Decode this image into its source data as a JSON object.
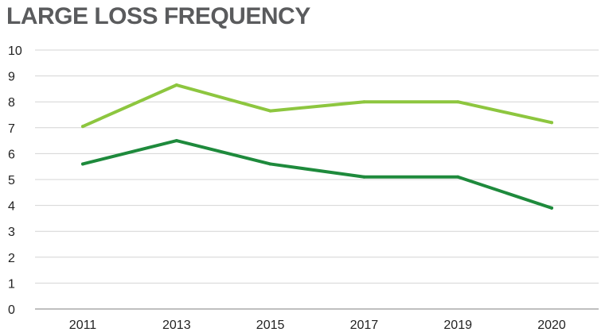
{
  "chart_data": {
    "type": "line",
    "title": "LARGE LOSS FREQUENCY",
    "xlabel": "",
    "ylabel": "",
    "categories": [
      "2011",
      "2013",
      "2015",
      "2017",
      "2019",
      "2020"
    ],
    "ylim": [
      0,
      10
    ],
    "yticks": [
      0,
      1,
      2,
      3,
      4,
      5,
      6,
      7,
      8,
      9,
      10
    ],
    "grid": true,
    "legend": "none",
    "series": [
      {
        "name": "Light green series",
        "color": "#8dc63f",
        "values": [
          7.05,
          8.65,
          7.65,
          8.0,
          8.0,
          7.2
        ]
      },
      {
        "name": "Dark green series",
        "color": "#1e8a3c",
        "values": [
          5.6,
          6.5,
          5.6,
          5.1,
          5.1,
          3.9
        ]
      }
    ],
    "colors": {
      "grid": "#d4d4d4",
      "axis": "#999999",
      "title": "#5a5b5d",
      "tick_text": "#222222"
    }
  }
}
